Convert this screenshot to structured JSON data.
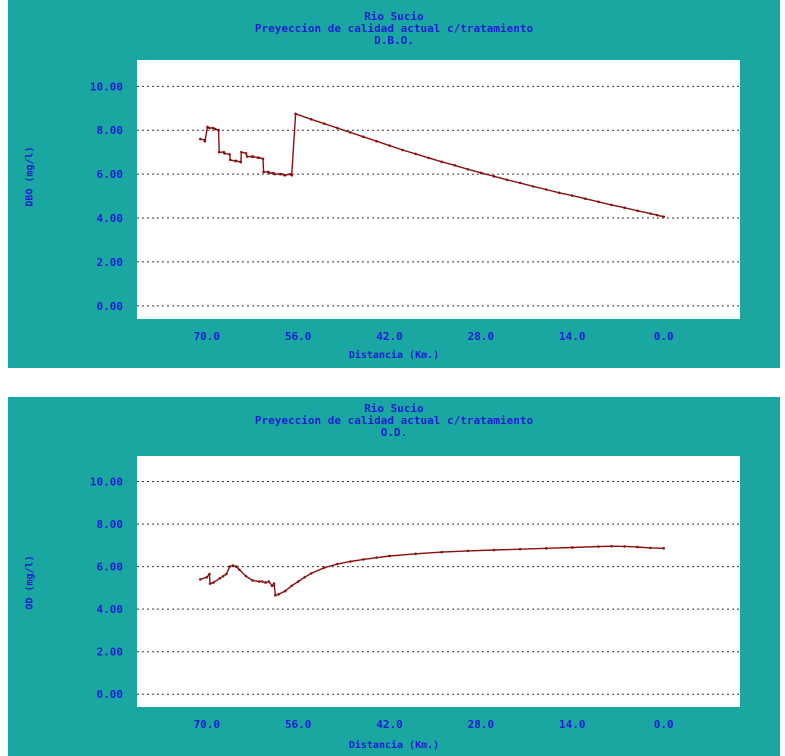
{
  "chart_data": [
    {
      "type": "line",
      "title": "Rio Sucio",
      "subtitle": "Preyeccion de calidad actual c/tratamiento",
      "parameter": "D.B.O.",
      "xlabel": "Distancia (Km.)",
      "ylabel": "DBO (mg/l)",
      "xlim": [
        80.7,
        -11.7
      ],
      "ylim": [
        -0.6,
        11.2
      ],
      "x_ticks": [
        "70.0",
        "56.0",
        "42.0",
        "28.0",
        "14.0",
        "0.0"
      ],
      "y_ticks": [
        "0.00",
        "2.00",
        "4.00",
        "6.00",
        "8.00",
        "10.00"
      ],
      "grid": "horizontal dotted",
      "color": "#8b1010",
      "series": [
        {
          "x": [
            71.0,
            70.3,
            70.3,
            69.9,
            69.6,
            69.0,
            68.7,
            68.2,
            68.1,
            67.4,
            67.3,
            66.5,
            66.4,
            65.6,
            65.5,
            64.8,
            64.7,
            64.0,
            63.8,
            63.1,
            62.9,
            62.2,
            62.0,
            61.4,
            61.3,
            60.6,
            60.4,
            59.8,
            59.6,
            58.8,
            58.6,
            58.1,
            58.0,
            57.2,
            57.0,
            56.4,
            54.0,
            52.0,
            50.0,
            48.0,
            46.0,
            44.0,
            42.0,
            40.0,
            38.0,
            36.0,
            34.0,
            32.0,
            30.0,
            28.0,
            26.0,
            24.0,
            22.0,
            20.0,
            18.0,
            16.0,
            14.0,
            12.0,
            10.0,
            8.0,
            6.0,
            4.0,
            2.0,
            1.0,
            0.0
          ],
          "y": [
            7.6,
            7.55,
            7.5,
            8.15,
            8.1,
            8.1,
            8.05,
            8.0,
            7.0,
            7.0,
            6.95,
            6.9,
            6.65,
            6.6,
            6.6,
            6.55,
            7.0,
            6.95,
            6.8,
            6.8,
            6.8,
            6.75,
            6.75,
            6.7,
            6.1,
            6.1,
            6.05,
            6.05,
            6.0,
            6.0,
            6.0,
            5.95,
            5.95,
            6.0,
            5.95,
            8.75,
            8.5,
            8.3,
            8.1,
            7.9,
            7.7,
            7.5,
            7.3,
            7.1,
            6.92,
            6.74,
            6.56,
            6.4,
            6.22,
            6.06,
            5.9,
            5.74,
            5.6,
            5.44,
            5.3,
            5.15,
            5.02,
            4.88,
            4.74,
            4.6,
            4.47,
            4.33,
            4.2,
            4.13,
            4.06
          ]
        }
      ]
    },
    {
      "type": "line",
      "title": "Rio Sucio",
      "subtitle": "Preyeccion de calidad actual c/tratamiento",
      "parameter": "O.D.",
      "xlabel": "Distancia (Km.)",
      "ylabel": "OD (mg/l)",
      "xlim": [
        80.7,
        -11.7
      ],
      "ylim": [
        -0.6,
        11.2
      ],
      "x_ticks": [
        "70.0",
        "56.0",
        "42.0",
        "28.0",
        "14.0",
        "0.0"
      ],
      "y_ticks": [
        "0.00",
        "2.00",
        "4.00",
        "6.00",
        "8.00",
        "10.00"
      ],
      "grid": "horizontal dotted",
      "color": "#8b1010",
      "series": [
        {
          "x": [
            71.0,
            70.0,
            69.6,
            69.5,
            69.0,
            68.0,
            67.5,
            67.0,
            66.5,
            66.0,
            65.5,
            65.0,
            64.0,
            63.0,
            62.0,
            61.5,
            61.0,
            60.5,
            60.0,
            59.7,
            59.5,
            59.0,
            58.0,
            57.0,
            56.0,
            55.0,
            54.0,
            52.0,
            50.0,
            48.0,
            46.0,
            44.0,
            42.0,
            38.0,
            34.0,
            30.0,
            26.0,
            22.0,
            18.0,
            14.0,
            10.0,
            8.0,
            6.0,
            4.0,
            2.0,
            0.0
          ],
          "y": [
            5.4,
            5.5,
            5.65,
            5.2,
            5.25,
            5.45,
            5.55,
            5.65,
            6.0,
            6.05,
            6.0,
            5.85,
            5.55,
            5.35,
            5.3,
            5.3,
            5.25,
            5.3,
            5.1,
            5.2,
            4.65,
            4.7,
            4.85,
            5.1,
            5.3,
            5.5,
            5.68,
            5.95,
            6.12,
            6.24,
            6.34,
            6.42,
            6.5,
            6.6,
            6.68,
            6.74,
            6.78,
            6.82,
            6.86,
            6.9,
            6.94,
            6.96,
            6.95,
            6.92,
            6.88,
            6.86
          ]
        }
      ]
    }
  ]
}
